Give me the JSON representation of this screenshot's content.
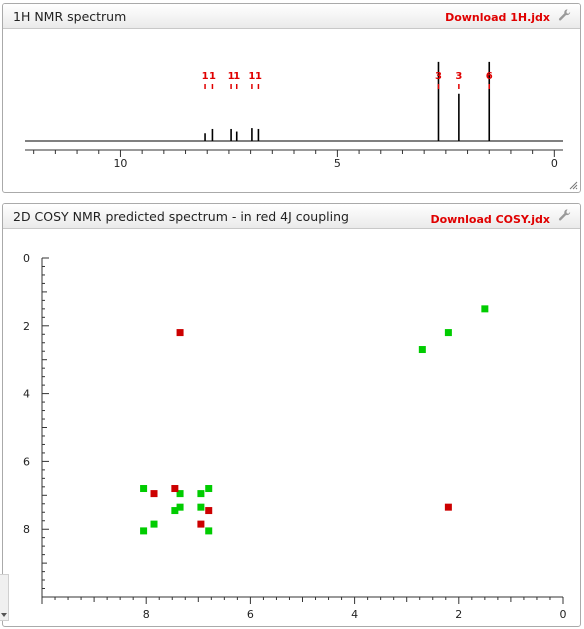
{
  "panels": {
    "nmr1h": {
      "title": "1H NMR spectrum",
      "download_label": "Download 1H.jdx"
    },
    "cosy": {
      "title": "2D COSY NMR predicted spectrum - in red 4J coupling",
      "download_label": "Download COSY.jdx"
    }
  },
  "colors": {
    "accent": "#e00000",
    "cosy_3j": "#00cc00",
    "cosy_4j": "#cc0000",
    "line": "#000000"
  },
  "icons": {
    "settings": "wrench-icon",
    "resize": "resize-grip-icon"
  },
  "chart_data": [
    {
      "type": "line",
      "xlim": [
        12.2,
        -0.2
      ],
      "reversed_x": true,
      "x_ticks": [
        10,
        5,
        0
      ],
      "peaks": [
        {
          "x": 8.05,
          "h": 0.09
        },
        {
          "x": 7.88,
          "h": 0.14
        },
        {
          "x": 7.45,
          "h": 0.14
        },
        {
          "x": 7.32,
          "h": 0.11
        },
        {
          "x": 6.97,
          "h": 0.15
        },
        {
          "x": 6.82,
          "h": 0.14
        },
        {
          "x": 2.67,
          "h": 0.92
        },
        {
          "x": 2.2,
          "h": 0.55
        },
        {
          "x": 1.5,
          "h": 0.92
        }
      ],
      "integrals": [
        {
          "x": 8.05,
          "label": "1"
        },
        {
          "x": 7.88,
          "label": "1"
        },
        {
          "x": 7.45,
          "label": "1"
        },
        {
          "x": 7.32,
          "label": "1"
        },
        {
          "x": 6.97,
          "label": "1"
        },
        {
          "x": 6.82,
          "label": "1"
        },
        {
          "x": 2.67,
          "label": "3"
        },
        {
          "x": 2.2,
          "label": "3"
        },
        {
          "x": 1.5,
          "label": "6"
        }
      ]
    },
    {
      "type": "scatter",
      "xlim": [
        10,
        0
      ],
      "ylim": [
        0,
        10
      ],
      "x_ticks": [
        8,
        6,
        4,
        2,
        0
      ],
      "y_ticks": [
        0,
        2,
        4,
        6,
        8
      ],
      "series": [
        {
          "color": "#00cc00",
          "points": [
            [
              8.05,
              6.8
            ],
            [
              8.05,
              8.05
            ],
            [
              7.85,
              7.85
            ],
            [
              7.45,
              7.45
            ],
            [
              7.35,
              6.95
            ],
            [
              7.35,
              7.35
            ],
            [
              6.95,
              6.95
            ],
            [
              6.95,
              7.35
            ],
            [
              6.8,
              6.8
            ],
            [
              6.8,
              8.05
            ],
            [
              2.7,
              2.7
            ],
            [
              2.2,
              2.2
            ],
            [
              1.5,
              1.5
            ]
          ]
        },
        {
          "color": "#cc0000",
          "points": [
            [
              7.85,
              6.95
            ],
            [
              7.45,
              6.8
            ],
            [
              6.8,
              7.45
            ],
            [
              6.95,
              7.85
            ],
            [
              7.35,
              2.2
            ],
            [
              2.2,
              7.35
            ]
          ]
        }
      ]
    }
  ]
}
